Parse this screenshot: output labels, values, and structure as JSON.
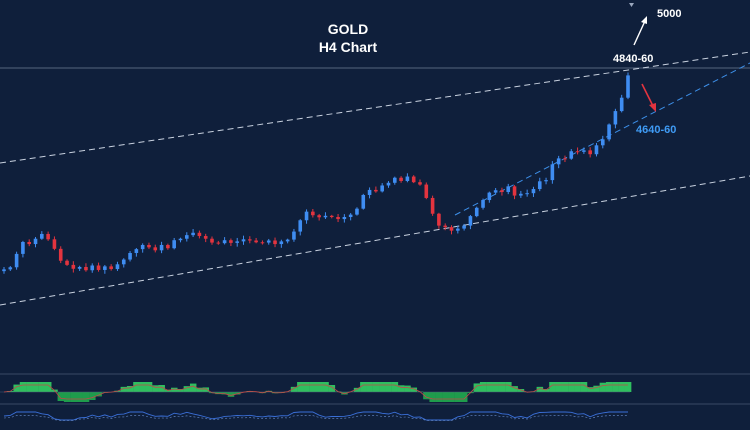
{
  "chart_data": {
    "type": "candlestick",
    "title": "GOLD",
    "subtitle": "H4 Chart",
    "colors": {
      "background": "#0f1f3b",
      "bull": "#3f8df2",
      "bear": "#e3343f",
      "channel": "#c9d2e0",
      "support": "#3d8fe8",
      "histogram_pos": "#2fbf5f",
      "histogram_neg": "#1f9c4c",
      "oscillator": "#3a6fd8",
      "arrow_up": "#ffffff",
      "arrow_down": "#e3343f",
      "label_support": "#3f9bf5",
      "label_white": "#ffffff"
    },
    "annotations": [
      {
        "text": "5000",
        "color": "label_white"
      },
      {
        "text": "4840-60",
        "color": "label_white"
      },
      {
        "text": "4640-60",
        "color": "label_support"
      }
    ],
    "arrows": [
      {
        "direction": "up",
        "color": "arrow_up"
      },
      {
        "direction": "down",
        "color": "arrow_down"
      }
    ],
    "series": [
      {
        "name": "",
        "close": [
          4003,
          4010,
          4055,
          4095,
          4088,
          4106,
          4122,
          4104,
          4072,
          4032,
          4018,
          4005,
          4011,
          4000,
          4016,
          4001,
          4013,
          4004,
          4020,
          4036,
          4058,
          4071,
          4085,
          4077,
          4067,
          4085,
          4074,
          4101,
          4106,
          4118,
          4126,
          4115,
          4106,
          4093,
          4091,
          4101,
          4092,
          4097,
          4104,
          4100,
          4094,
          4093,
          4100,
          4088,
          4097,
          4103,
          4130,
          4168,
          4197,
          4185,
          4178,
          4183,
          4179,
          4172,
          4179,
          4187,
          4207,
          4253,
          4270,
          4265,
          4285,
          4294,
          4311,
          4300,
          4315,
          4296,
          4288,
          4243,
          4190,
          4150,
          4145,
          4133,
          4140,
          4150,
          4182,
          4210,
          4236,
          4261,
          4269,
          4263,
          4282,
          4251,
          4257,
          4259,
          4273,
          4299,
          4303,
          4356,
          4376,
          4375,
          4400,
          4398,
          4403,
          4390,
          4420,
          4440,
          4490,
          4535,
          4580,
          4655
        ]
      }
    ]
  }
}
